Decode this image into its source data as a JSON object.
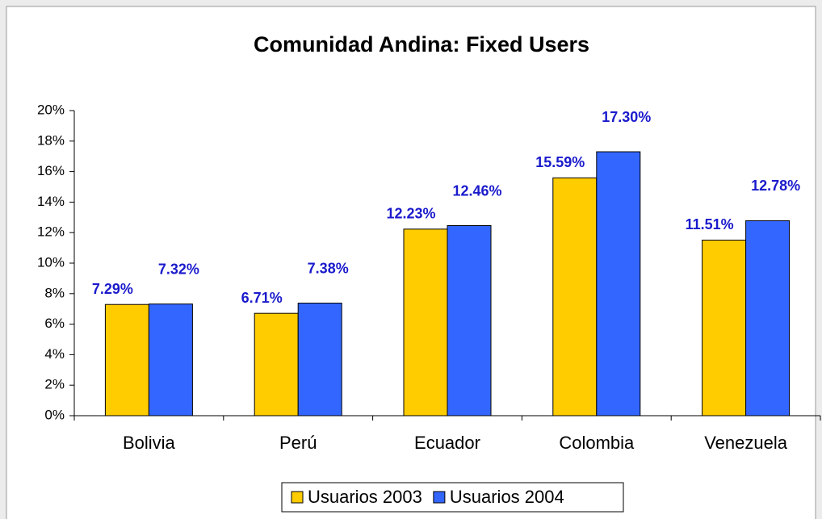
{
  "chart_data": {
    "type": "bar",
    "title": "Comunidad Andina: Fixed Users",
    "categories": [
      "Bolivia",
      "Perú",
      "Ecuador",
      "Colombia",
      "Venezuela"
    ],
    "series": [
      {
        "name": "Usuarios 2003",
        "color": "#ffcc00",
        "values": [
          7.29,
          6.71,
          12.23,
          15.59,
          11.51
        ],
        "value_labels": [
          "7.29%",
          "6.71%",
          "12.23%",
          "15.59%",
          "11.51%"
        ]
      },
      {
        "name": "Usuarios 2004",
        "color": "#3366ff",
        "values": [
          7.32,
          7.38,
          12.46,
          17.3,
          12.78
        ],
        "value_labels": [
          "7.32%",
          "7.38%",
          "12.46%",
          "17.30%",
          "12.78%"
        ]
      }
    ],
    "ylim": [
      0,
      20
    ],
    "yticks": [
      {
        "value": 0,
        "label": "0%"
      },
      {
        "value": 2,
        "label": "2%"
      },
      {
        "value": 4,
        "label": "4%"
      },
      {
        "value": 6,
        "label": "6%"
      },
      {
        "value": 8,
        "label": "8%"
      },
      {
        "value": 10,
        "label": "10%"
      },
      {
        "value": 12,
        "label": "12%"
      },
      {
        "value": 14,
        "label": "14%"
      },
      {
        "value": 16,
        "label": "16%"
      },
      {
        "value": 18,
        "label": "18%"
      },
      {
        "value": 20,
        "label": "20%"
      }
    ],
    "legend": "bottom"
  }
}
